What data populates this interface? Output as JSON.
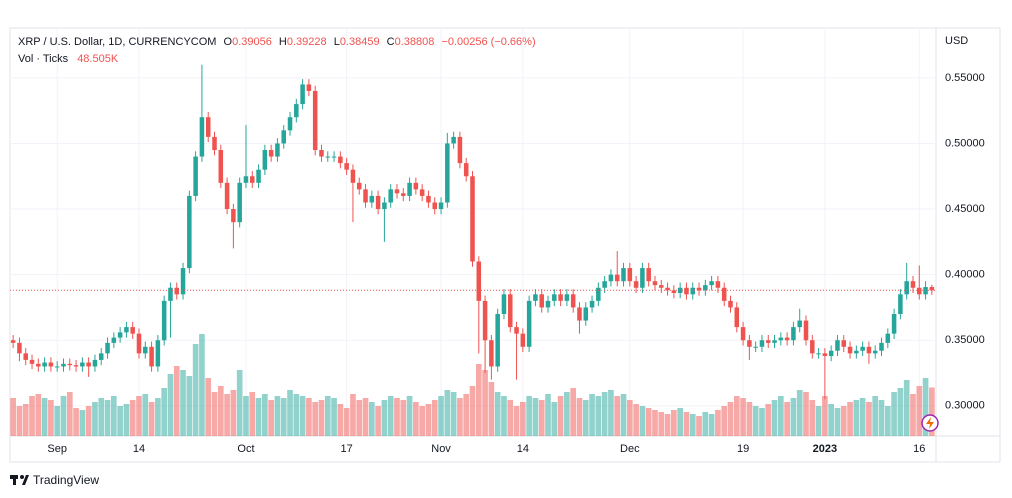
{
  "chart_data": {
    "type": "candlestick",
    "header": {
      "symbol": "XRP / U.S. Dollar, 1D, CURRENCYCOM",
      "o_label": "O",
      "o": "0.39056",
      "h_label": "H",
      "h": "0.39228",
      "l_label": "L",
      "l": "0.38459",
      "c_label": "C",
      "c": "0.38808",
      "change": "−0.00256 (−0.66%)",
      "vol_label": "Vol · Ticks",
      "vol": "48.505K"
    },
    "currency": "USD",
    "brand": "TradingView",
    "up_color": "#26a69a",
    "down_color": "#ef5350",
    "ylim": [
      0.277,
      0.588
    ],
    "yticks": [
      {
        "value": 0.3,
        "label": "0.30000"
      },
      {
        "value": 0.35,
        "label": "0.35000"
      },
      {
        "value": 0.4,
        "label": "0.40000"
      },
      {
        "value": 0.45,
        "label": "0.45000"
      },
      {
        "value": 0.5,
        "label": "0.50000"
      },
      {
        "value": 0.55,
        "label": "0.55000"
      }
    ],
    "volume_lim": [
      0,
      408
    ],
    "grid": true,
    "categories": [
      null,
      null,
      null,
      null,
      null,
      null,
      null,
      "Sep",
      null,
      null,
      null,
      null,
      null,
      null,
      null,
      null,
      null,
      null,
      null,
      null,
      "14",
      null,
      null,
      null,
      null,
      null,
      null,
      null,
      null,
      null,
      null,
      null,
      null,
      null,
      null,
      null,
      null,
      "Oct",
      null,
      null,
      null,
      null,
      null,
      null,
      null,
      null,
      null,
      null,
      null,
      null,
      null,
      null,
      null,
      "17",
      null,
      null,
      null,
      null,
      null,
      null,
      null,
      null,
      null,
      null,
      null,
      null,
      null,
      null,
      "Nov",
      null,
      null,
      null,
      null,
      null,
      null,
      null,
      null,
      null,
      null,
      null,
      null,
      "14",
      null,
      null,
      null,
      null,
      null,
      null,
      null,
      null,
      null,
      null,
      null,
      null,
      null,
      null,
      null,
      null,
      "Dec",
      null,
      null,
      null,
      null,
      null,
      null,
      null,
      null,
      null,
      null,
      null,
      null,
      null,
      null,
      null,
      null,
      null,
      "19",
      null,
      null,
      null,
      null,
      null,
      null,
      null,
      null,
      null,
      null,
      null,
      null,
      "2023",
      null,
      null,
      null,
      null,
      null,
      null,
      null,
      null,
      null,
      null,
      null,
      null,
      null,
      null,
      "16",
      null,
      null
    ],
    "open": [
      0.35,
      0.348,
      0.34,
      0.335,
      0.332,
      0.33,
      0.333,
      0.33,
      0.33,
      0.332,
      0.331,
      0.33,
      0.333,
      0.33,
      0.335,
      0.34,
      0.348,
      0.352,
      0.356,
      0.36,
      0.355,
      0.34,
      0.345,
      0.33,
      0.35,
      0.38,
      0.39,
      0.385,
      0.405,
      0.46,
      0.49,
      0.52,
      0.505,
      0.495,
      0.47,
      0.45,
      0.44,
      0.47,
      0.475,
      0.47,
      0.48,
      0.495,
      0.49,
      0.5,
      0.51,
      0.52,
      0.53,
      0.545,
      0.54,
      0.495,
      0.49,
      0.49,
      0.49,
      0.485,
      0.48,
      0.47,
      0.465,
      0.455,
      0.46,
      0.45,
      0.455,
      0.465,
      0.462,
      0.46,
      0.47,
      0.465,
      0.46,
      0.455,
      0.45,
      0.455,
      0.5,
      0.505,
      0.485,
      0.475,
      0.41,
      0.38,
      0.35,
      0.33,
      0.37,
      0.385,
      0.36,
      0.355,
      0.345,
      0.38,
      0.385,
      0.375,
      0.38,
      0.385,
      0.38,
      0.385,
      0.375,
      0.365,
      0.375,
      0.38,
      0.39,
      0.395,
      0.4,
      0.395,
      0.405,
      0.395,
      0.39,
      0.405,
      0.395,
      0.392,
      0.39,
      0.388,
      0.386,
      0.39,
      0.385,
      0.39,
      0.388,
      0.392,
      0.395,
      0.39,
      0.38,
      0.375,
      0.36,
      0.35,
      0.345,
      0.345,
      0.35,
      0.348,
      0.35,
      0.352,
      0.35,
      0.36,
      0.365,
      0.35,
      0.34,
      0.34,
      0.338,
      0.342,
      0.35,
      0.345,
      0.34,
      0.342,
      0.345,
      0.34,
      0.342,
      0.348,
      0.355,
      0.37,
      0.385,
      0.395,
      0.39,
      0.385,
      0.39056
    ],
    "high": [
      0.354,
      0.352,
      0.344,
      0.339,
      0.336,
      0.337,
      0.337,
      0.334,
      0.336,
      0.336,
      0.335,
      0.337,
      0.337,
      0.339,
      0.344,
      0.352,
      0.356,
      0.36,
      0.364,
      0.364,
      0.359,
      0.349,
      0.349,
      0.354,
      0.384,
      0.394,
      0.394,
      0.409,
      0.464,
      0.494,
      0.56,
      0.524,
      0.509,
      0.499,
      0.474,
      0.454,
      0.474,
      0.514,
      0.479,
      0.484,
      0.499,
      0.499,
      0.504,
      0.514,
      0.524,
      0.534,
      0.549,
      0.549,
      0.544,
      0.499,
      0.494,
      0.494,
      0.494,
      0.489,
      0.484,
      0.474,
      0.469,
      0.464,
      0.464,
      0.459,
      0.469,
      0.469,
      0.466,
      0.474,
      0.474,
      0.469,
      0.464,
      0.459,
      0.459,
      0.508,
      0.509,
      0.509,
      0.489,
      0.479,
      0.414,
      0.384,
      0.354,
      0.374,
      0.389,
      0.389,
      0.364,
      0.359,
      0.384,
      0.389,
      0.389,
      0.384,
      0.389,
      0.389,
      0.389,
      0.389,
      0.379,
      0.379,
      0.384,
      0.394,
      0.399,
      0.404,
      0.418,
      0.409,
      0.409,
      0.399,
      0.409,
      0.409,
      0.399,
      0.396,
      0.394,
      0.392,
      0.394,
      0.394,
      0.394,
      0.394,
      0.396,
      0.399,
      0.399,
      0.394,
      0.384,
      0.379,
      0.364,
      0.354,
      0.349,
      0.354,
      0.354,
      0.354,
      0.356,
      0.356,
      0.364,
      0.374,
      0.369,
      0.354,
      0.344,
      0.344,
      0.346,
      0.354,
      0.354,
      0.349,
      0.346,
      0.349,
      0.349,
      0.346,
      0.352,
      0.359,
      0.374,
      0.389,
      0.409,
      0.399,
      0.407,
      0.395,
      0.39228
    ],
    "low": [
      0.344,
      0.334,
      0.331,
      0.328,
      0.326,
      0.326,
      0.326,
      0.326,
      0.326,
      0.327,
      0.326,
      0.326,
      0.322,
      0.326,
      0.331,
      0.336,
      0.344,
      0.348,
      0.352,
      0.351,
      0.336,
      0.336,
      0.326,
      0.326,
      0.346,
      0.352,
      0.381,
      0.381,
      0.401,
      0.456,
      0.486,
      0.501,
      0.491,
      0.466,
      0.446,
      0.42,
      0.436,
      0.466,
      0.466,
      0.466,
      0.476,
      0.486,
      0.486,
      0.496,
      0.506,
      0.516,
      0.526,
      0.536,
      0.491,
      0.486,
      0.486,
      0.486,
      0.481,
      0.476,
      0.44,
      0.461,
      0.451,
      0.451,
      0.446,
      0.425,
      0.451,
      0.458,
      0.456,
      0.456,
      0.461,
      0.456,
      0.451,
      0.446,
      0.446,
      0.451,
      0.496,
      0.481,
      0.471,
      0.406,
      0.34,
      0.325,
      0.32,
      0.326,
      0.366,
      0.356,
      0.32,
      0.341,
      0.341,
      0.376,
      0.371,
      0.371,
      0.376,
      0.376,
      0.376,
      0.371,
      0.355,
      0.361,
      0.371,
      0.376,
      0.386,
      0.391,
      0.391,
      0.391,
      0.391,
      0.386,
      0.386,
      0.391,
      0.388,
      0.386,
      0.384,
      0.382,
      0.382,
      0.381,
      0.381,
      0.384,
      0.384,
      0.388,
      0.386,
      0.376,
      0.371,
      0.356,
      0.346,
      0.335,
      0.341,
      0.341,
      0.344,
      0.344,
      0.346,
      0.346,
      0.346,
      0.356,
      0.346,
      0.336,
      0.336,
      0.305,
      0.334,
      0.338,
      0.341,
      0.336,
      0.336,
      0.338,
      0.332,
      0.336,
      0.338,
      0.344,
      0.351,
      0.366,
      0.381,
      0.386,
      0.381,
      0.381,
      0.38459
    ],
    "close": [
      0.348,
      0.34,
      0.335,
      0.332,
      0.33,
      0.333,
      0.33,
      0.33,
      0.332,
      0.331,
      0.33,
      0.333,
      0.33,
      0.335,
      0.34,
      0.348,
      0.352,
      0.356,
      0.36,
      0.355,
      0.34,
      0.345,
      0.33,
      0.35,
      0.38,
      0.39,
      0.385,
      0.405,
      0.46,
      0.49,
      0.52,
      0.505,
      0.495,
      0.47,
      0.45,
      0.44,
      0.47,
      0.475,
      0.47,
      0.48,
      0.495,
      0.49,
      0.5,
      0.51,
      0.52,
      0.53,
      0.545,
      0.54,
      0.495,
      0.49,
      0.49,
      0.49,
      0.485,
      0.48,
      0.47,
      0.465,
      0.455,
      0.46,
      0.45,
      0.455,
      0.465,
      0.462,
      0.46,
      0.47,
      0.465,
      0.46,
      0.455,
      0.45,
      0.455,
      0.5,
      0.505,
      0.485,
      0.475,
      0.41,
      0.38,
      0.35,
      0.33,
      0.37,
      0.385,
      0.36,
      0.355,
      0.345,
      0.38,
      0.385,
      0.375,
      0.38,
      0.385,
      0.38,
      0.385,
      0.375,
      0.365,
      0.375,
      0.38,
      0.39,
      0.395,
      0.4,
      0.395,
      0.405,
      0.395,
      0.39,
      0.405,
      0.395,
      0.392,
      0.39,
      0.388,
      0.386,
      0.39,
      0.385,
      0.39,
      0.388,
      0.392,
      0.395,
      0.39,
      0.38,
      0.375,
      0.36,
      0.35,
      0.345,
      0.345,
      0.35,
      0.348,
      0.35,
      0.352,
      0.35,
      0.36,
      0.365,
      0.35,
      0.34,
      0.34,
      0.338,
      0.342,
      0.35,
      0.345,
      0.34,
      0.342,
      0.345,
      0.34,
      0.342,
      0.348,
      0.355,
      0.37,
      0.385,
      0.395,
      0.39,
      0.385,
      0.39056,
      0.38808
    ],
    "volume": [
      38,
      30,
      32,
      40,
      42,
      38,
      36,
      30,
      40,
      44,
      28,
      26,
      30,
      34,
      38,
      36,
      40,
      30,
      32,
      36,
      40,
      42,
      34,
      38,
      48,
      62,
      70,
      66,
      60,
      92,
      102,
      58,
      44,
      50,
      42,
      46,
      66,
      40,
      44,
      38,
      42,
      36,
      40,
      38,
      46,
      42,
      40,
      38,
      34,
      36,
      40,
      38,
      32,
      28,
      42,
      36,
      38,
      34,
      30,
      36,
      40,
      38,
      36,
      40,
      34,
      30,
      32,
      36,
      40,
      46,
      44,
      38,
      42,
      50,
      72,
      66,
      54,
      44,
      40,
      36,
      30,
      34,
      40,
      38,
      36,
      42,
      34,
      40,
      44,
      48,
      38,
      36,
      42,
      40,
      44,
      46,
      40,
      42,
      36,
      32,
      30,
      28,
      26,
      24,
      22,
      26,
      28,
      24,
      22,
      20,
      24,
      22,
      26,
      30,
      34,
      40,
      38,
      34,
      30,
      28,
      32,
      36,
      40,
      34,
      38,
      46,
      44,
      36,
      30,
      40,
      32,
      28,
      30,
      34,
      36,
      38,
      34,
      40,
      36,
      30,
      44,
      48,
      56,
      42,
      50,
      58,
      48.505
    ]
  }
}
